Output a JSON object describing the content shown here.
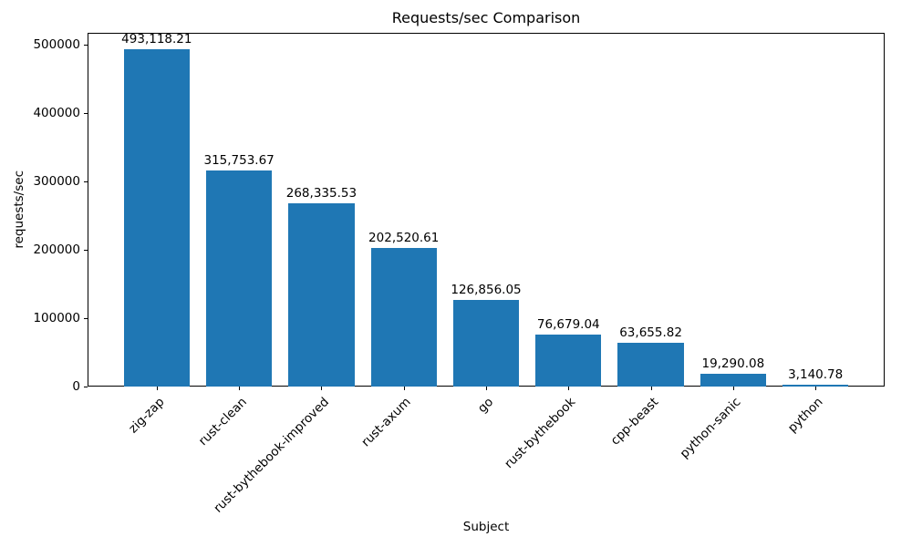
{
  "chart_data": {
    "type": "bar",
    "title": "Requests/sec Comparison",
    "xlabel": "Subject",
    "ylabel": "requests/sec",
    "categories": [
      "zig-zap",
      "rust-clean",
      "rust-bythebook-improved",
      "rust-axum",
      "go",
      "rust-bythebook",
      "cpp-beast",
      "python-sanic",
      "python"
    ],
    "values": [
      493118.21,
      315753.67,
      268335.53,
      202520.61,
      126856.05,
      76679.04,
      63655.82,
      19290.08,
      3140.78
    ],
    "value_labels": [
      "493,118.21",
      "315,753.67",
      "268,335.53",
      "202,520.61",
      "126,856.05",
      "76,679.04",
      "63,655.82",
      "19,290.08",
      "3,140.78"
    ],
    "yticks": [
      0,
      100000,
      200000,
      300000,
      400000,
      500000
    ],
    "ytick_labels": [
      "0",
      "100000",
      "200000",
      "300000",
      "400000",
      "500000"
    ],
    "ylim": [
      0,
      517774
    ],
    "bar_width_fraction": 0.8,
    "bar_color": "#1f77b4",
    "text_color": "#000000",
    "background": "#ffffff",
    "grid": false,
    "legend": null
  }
}
